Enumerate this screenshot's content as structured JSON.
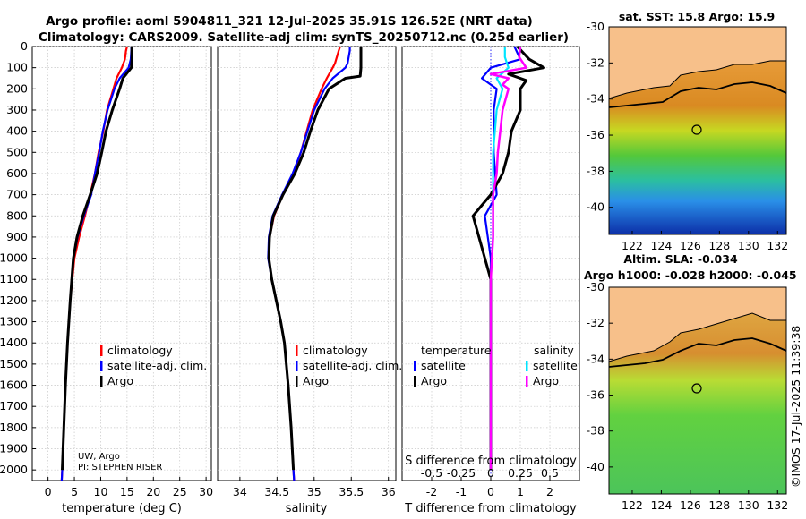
{
  "header": {
    "title_line1": "Argo profile: aoml 5904811_321 12-Jul-2025 35.91S 126.52E (NRT data)",
    "title_line2": "Climatology: CARS2009. Satellite-adj clim: synTS_20250712.nc (0.25d earlier)"
  },
  "credit": {
    "line1": "UW, Argo",
    "line2": "PI: STEPHEN RISER"
  },
  "watermark": "©IMOS 17-Jul-2025 11:39:38",
  "colors": {
    "climatology": "#ff0000",
    "satellite": "#0000ff",
    "argo": "#000000",
    "sat_salinity": "#00e5ff",
    "argo_salinity": "#ff00ff"
  },
  "chart_data": [
    {
      "type": "line",
      "xlabel": "temperature (deg C)",
      "ylabel": "",
      "xlim": [
        -3,
        31
      ],
      "ylim": [
        2050,
        0
      ],
      "xticks": [
        0,
        5,
        10,
        15,
        20,
        25,
        30
      ],
      "yticks": [
        0,
        100,
        200,
        300,
        400,
        500,
        600,
        700,
        800,
        900,
        1000,
        1100,
        1200,
        1300,
        1400,
        1500,
        1600,
        1700,
        1800,
        1900,
        2000
      ],
      "legend": [
        "climatology",
        "satellite-adj. clim.",
        "Argo"
      ],
      "series": [
        {
          "name": "climatology",
          "depth": [
            0,
            20,
            60,
            100,
            150,
            200,
            300,
            400,
            500,
            600,
            700,
            800,
            900,
            1000,
            1200,
            1400,
            1600,
            1800,
            2000,
            2050
          ],
          "values": [
            15.0,
            14.8,
            14.6,
            14.0,
            13.0,
            12.4,
            11.2,
            10.5,
            9.6,
            8.9,
            8.0,
            7.0,
            5.9,
            5.0,
            4.2,
            3.7,
            3.3,
            3.0,
            2.7,
            2.6
          ]
        },
        {
          "name": "satellite-adj. clim.",
          "depth": [
            0,
            20,
            60,
            100,
            150,
            200,
            300,
            400,
            500,
            600,
            700,
            800,
            900,
            1000,
            1200,
            1400,
            1600,
            1800,
            2000,
            2050
          ],
          "values": [
            15.8,
            15.8,
            15.7,
            15.3,
            13.6,
            12.6,
            11.3,
            10.4,
            9.7,
            8.9,
            8.2,
            6.8,
            5.6,
            4.8,
            4.2,
            3.7,
            3.3,
            3.0,
            2.7,
            2.6
          ]
        },
        {
          "name": "Argo",
          "depth": [
            0,
            20,
            60,
            100,
            150,
            200,
            300,
            400,
            500,
            600,
            700,
            800,
            900,
            1000,
            1200,
            1400,
            1600,
            1800,
            2000
          ],
          "values": [
            15.9,
            15.9,
            15.9,
            15.8,
            14.2,
            13.6,
            12.2,
            11.0,
            10.2,
            9.3,
            8.0,
            6.6,
            5.5,
            4.8,
            4.2,
            3.7,
            3.3,
            3.0,
            2.7
          ]
        }
      ]
    },
    {
      "type": "line",
      "xlabel": "salinity",
      "xlim": [
        33.7,
        36.1
      ],
      "ylim": [
        2050,
        0
      ],
      "xticks": [
        34,
        34.5,
        35,
        35.5,
        36
      ],
      "legend": [
        "climatology",
        "satellite-adj. clim.",
        "Argo"
      ],
      "series": [
        {
          "name": "climatology",
          "depth": [
            0,
            20,
            80,
            100,
            150,
            200,
            300,
            400,
            500,
            600,
            700,
            800,
            900,
            1000,
            1100,
            1200,
            1300,
            1400,
            1600,
            1800,
            2000,
            2050
          ],
          "values": [
            35.35,
            35.33,
            35.28,
            35.25,
            35.17,
            35.1,
            34.98,
            34.9,
            34.82,
            34.72,
            34.58,
            34.46,
            34.4,
            34.39,
            34.43,
            34.49,
            34.55,
            34.6,
            34.65,
            34.69,
            34.72,
            34.73
          ]
        },
        {
          "name": "satellite-adj. clim.",
          "depth": [
            0,
            20,
            80,
            100,
            150,
            200,
            300,
            400,
            500,
            600,
            700,
            800,
            900,
            1000,
            1100,
            1200,
            1300,
            1400,
            1600,
            1800,
            2000,
            2050
          ],
          "values": [
            35.48,
            35.48,
            35.45,
            35.42,
            35.25,
            35.14,
            35.0,
            34.91,
            34.82,
            34.71,
            34.57,
            34.44,
            34.39,
            34.38,
            34.43,
            34.49,
            34.55,
            34.6,
            34.65,
            34.69,
            34.72,
            34.73
          ]
        },
        {
          "name": "Argo",
          "depth": [
            0,
            20,
            80,
            100,
            140,
            150,
            200,
            300,
            400,
            500,
            600,
            700,
            800,
            900,
            1000,
            1100,
            1200,
            1300,
            1400,
            1600,
            1800,
            2000
          ],
          "values": [
            35.63,
            35.63,
            35.63,
            35.63,
            35.62,
            35.42,
            35.2,
            35.05,
            34.95,
            34.86,
            34.74,
            34.58,
            34.45,
            34.4,
            34.39,
            34.43,
            34.49,
            34.55,
            34.6,
            34.65,
            34.69,
            34.72
          ]
        }
      ]
    },
    {
      "type": "line",
      "xlabel": "T difference from climatology",
      "secondary_xlabel": "S difference from climatology",
      "xlim": [
        -3,
        3
      ],
      "ylim": [
        2050,
        0
      ],
      "xticks": [
        -2,
        -1,
        0,
        1,
        2
      ],
      "secondary_xticks": [
        -0.5,
        -0.25,
        0,
        0.25,
        0.5
      ],
      "legend_headers": [
        "temperature",
        "salinity"
      ],
      "legend": [
        "satellite",
        "Argo",
        "satellite",
        "Argo"
      ],
      "series": [
        {
          "name": "temperature satellite",
          "depth": [
            0,
            60,
            100,
            150,
            200,
            300,
            500,
            700,
            800,
            900,
            1000,
            1200,
            1500,
            2000
          ],
          "values": [
            0.8,
            1.0,
            0.0,
            -0.3,
            0.2,
            0.1,
            0.1,
            0.2,
            -0.2,
            -0.1,
            0.0,
            0.0,
            0.0,
            0.0
          ]
        },
        {
          "name": "temperature Argo",
          "depth": [
            0,
            60,
            100,
            130,
            160,
            200,
            300,
            400,
            500,
            600,
            700,
            750,
            800,
            850,
            900,
            1000,
            1100,
            1200,
            1500,
            2000
          ],
          "values": [
            0.9,
            1.3,
            1.8,
            0.6,
            1.2,
            1.0,
            1.0,
            0.7,
            0.6,
            0.4,
            0.0,
            -0.3,
            -0.6,
            -0.5,
            -0.4,
            -0.2,
            0.0,
            0.0,
            0.0,
            0.0
          ]
        },
        {
          "name": "salinity satellite",
          "depth": [
            0,
            50,
            100,
            150,
            200,
            300,
            500,
            700,
            900,
            1100,
            1400,
            2000
          ],
          "values": [
            0.12,
            0.12,
            0.15,
            0.05,
            0.1,
            0.05,
            0.02,
            0.02,
            0.02,
            0.0,
            0.0,
            0.0
          ]
        },
        {
          "name": "salinity Argo",
          "depth": [
            0,
            50,
            100,
            130,
            150,
            180,
            200,
            300,
            400,
            500,
            600,
            700,
            900,
            1100,
            1400,
            2000
          ],
          "values": [
            0.25,
            0.24,
            0.3,
            0.0,
            0.15,
            0.1,
            0.15,
            0.1,
            0.08,
            0.06,
            0.05,
            0.02,
            0.02,
            0.0,
            0.0,
            0.0
          ]
        }
      ]
    },
    {
      "type": "heatmap",
      "title": "sat. SST: 15.8 Argo: 15.9",
      "xticks": [
        122,
        124,
        126,
        128,
        130,
        132
      ],
      "yticks": [
        -30,
        -32,
        -34,
        -36,
        -38,
        -40
      ],
      "xlim": [
        120.4,
        132.6
      ],
      "ylim": [
        -41.5,
        -30
      ],
      "marker": {
        "lon": 126.52,
        "lat": -35.91
      }
    },
    {
      "type": "heatmap",
      "title": "Altim. SLA: -0.034",
      "subtitle": "Argo h1000: -0.028 h2000: -0.045",
      "xticks": [
        122,
        124,
        126,
        128,
        130,
        132
      ],
      "yticks": [
        -30,
        -32,
        -34,
        -36,
        -38,
        -40
      ],
      "xlim": [
        120.4,
        132.6
      ],
      "ylim": [
        -41.5,
        -30
      ],
      "marker": {
        "lon": 126.52,
        "lat": -35.91
      }
    }
  ]
}
